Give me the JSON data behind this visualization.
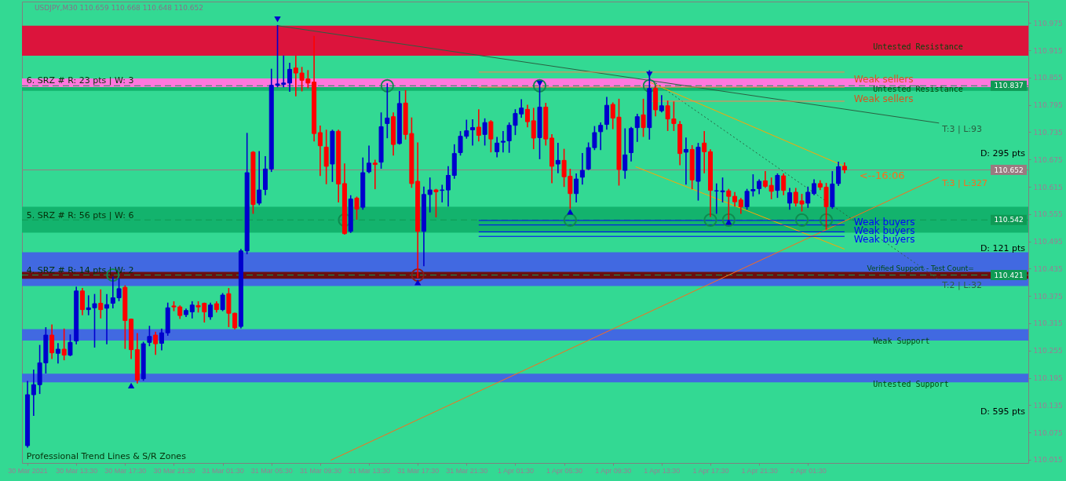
{
  "chart_data": {
    "type": "candlestick",
    "title": "USDJPY,M30 110.659 110.668 110.648 110.652",
    "x": [
      "2021-03-30T09:30",
      "2021-03-30T10:00",
      "2021-03-30T10:30",
      "2021-03-30T11:00",
      "2021-03-30T11:30",
      "2021-03-30T12:00",
      "2021-03-30T12:30",
      "2021-03-30T13:00",
      "2021-03-30T13:30",
      "2021-03-30T14:00",
      "2021-03-30T14:30",
      "2021-03-30T15:00",
      "2021-03-30T15:30",
      "2021-03-30T16:00",
      "2021-03-30T16:30",
      "2021-03-30T17:00",
      "2021-03-30T17:30",
      "2021-03-30T18:00",
      "2021-03-30T18:30",
      "2021-03-30T19:00",
      "2021-03-30T19:30",
      "2021-03-30T20:00",
      "2021-03-30T20:30",
      "2021-03-30T21:00",
      "2021-03-30T21:30",
      "2021-03-30T22:00",
      "2021-03-30T22:30",
      "2021-03-30T23:00",
      "2021-03-30T23:30",
      "2021-03-31T00:00",
      "2021-03-31T00:30",
      "2021-03-31T01:00",
      "2021-03-31T01:30",
      "2021-03-31T02:00",
      "2021-03-31T02:30",
      "2021-03-31T03:00",
      "2021-03-31T03:30",
      "2021-03-31T04:00",
      "2021-03-31T04:30",
      "2021-03-31T05:00",
      "2021-03-31T05:30",
      "2021-03-31T06:00",
      "2021-03-31T06:30",
      "2021-03-31T07:00",
      "2021-03-31T07:30",
      "2021-03-31T08:00",
      "2021-03-31T08:30",
      "2021-03-31T09:00",
      "2021-03-31T09:30",
      "2021-03-31T10:00",
      "2021-03-31T10:30",
      "2021-03-31T11:00",
      "2021-03-31T11:30",
      "2021-03-31T12:00",
      "2021-03-31T12:30",
      "2021-03-31T13:00",
      "2021-03-31T13:30",
      "2021-03-31T14:00",
      "2021-03-31T14:30",
      "2021-03-31T15:00",
      "2021-03-31T15:30",
      "2021-03-31T16:00",
      "2021-03-31T16:30",
      "2021-03-31T17:00",
      "2021-03-31T17:30",
      "2021-03-31T18:00",
      "2021-03-31T18:30",
      "2021-03-31T19:00",
      "2021-03-31T19:30",
      "2021-03-31T20:00",
      "2021-03-31T20:30",
      "2021-03-31T21:00",
      "2021-03-31T21:30",
      "2021-03-31T22:00",
      "2021-03-31T22:30",
      "2021-03-31T23:00",
      "2021-03-31T23:30",
      "2021-04-01T00:00",
      "2021-04-01T00:30",
      "2021-04-01T01:00",
      "2021-04-01T01:30",
      "2021-04-01T02:00",
      "2021-04-01T02:30",
      "2021-04-01T03:00",
      "2021-04-01T03:30",
      "2021-04-01T04:00",
      "2021-04-01T04:30",
      "2021-04-01T05:00",
      "2021-04-01T05:30",
      "2021-04-01T06:00",
      "2021-04-01T06:30",
      "2021-04-01T07:00",
      "2021-04-01T07:30",
      "2021-04-01T08:00",
      "2021-04-01T08:30",
      "2021-04-01T09:00",
      "2021-04-01T09:30",
      "2021-04-01T10:00",
      "2021-04-01T10:30",
      "2021-04-01T11:00",
      "2021-04-01T11:30",
      "2021-04-01T12:00",
      "2021-04-01T12:30",
      "2021-04-01T13:00",
      "2021-04-01T13:30",
      "2021-04-01T14:00",
      "2021-04-01T14:30",
      "2021-04-01T15:00",
      "2021-04-01T15:30",
      "2021-04-01T16:00",
      "2021-04-01T16:30",
      "2021-04-01T17:00",
      "2021-04-01T17:30",
      "2021-04-01T18:00",
      "2021-04-01T18:30",
      "2021-04-01T19:00",
      "2021-04-01T19:30",
      "2021-04-01T20:00",
      "2021-04-01T20:30",
      "2021-04-01T21:00",
      "2021-04-01T21:30",
      "2021-04-01T22:00",
      "2021-04-01T22:30",
      "2021-04-01T23:00",
      "2021-04-01T23:30",
      "2021-04-02T00:00",
      "2021-04-02T00:30",
      "2021-04-02T01:00",
      "2021-04-02T01:30",
      "2021-04-02T02:00",
      "2021-04-02T02:30",
      "2021-04-02T03:00",
      "2021-04-02T03:30",
      "2021-04-02T04:00",
      "2021-04-02T04:30"
    ],
    "ohlc": [
      [
        110.046,
        110.187,
        110.043,
        110.158
      ],
      [
        110.158,
        110.212,
        110.113,
        110.18
      ],
      [
        110.18,
        110.266,
        110.161,
        110.228
      ],
      [
        110.228,
        110.305,
        110.206,
        110.289
      ],
      [
        110.289,
        110.311,
        110.238,
        110.25
      ],
      [
        110.249,
        110.27,
        110.228,
        110.258
      ],
      [
        110.258,
        110.302,
        110.235,
        110.245
      ],
      [
        110.245,
        110.289,
        110.244,
        110.273
      ],
      [
        110.276,
        110.394,
        110.27,
        110.386
      ],
      [
        110.386,
        110.391,
        110.334,
        110.345
      ],
      [
        110.345,
        110.375,
        110.334,
        110.349
      ],
      [
        110.349,
        110.378,
        110.263,
        110.358
      ],
      [
        110.359,
        110.388,
        110.327,
        110.345
      ],
      [
        110.348,
        110.378,
        110.27,
        110.356
      ],
      [
        110.359,
        110.416,
        110.349,
        110.371
      ],
      [
        110.371,
        110.413,
        110.365,
        110.391
      ],
      [
        110.394,
        110.397,
        110.26,
        110.321
      ],
      [
        110.324,
        110.324,
        110.238,
        110.257
      ],
      [
        110.257,
        110.292,
        110.184,
        110.19
      ],
      [
        110.193,
        110.273,
        110.19,
        110.27
      ],
      [
        110.273,
        110.308,
        110.266,
        110.286
      ],
      [
        110.289,
        110.295,
        110.247,
        110.27
      ],
      [
        110.271,
        110.302,
        110.257,
        110.294
      ],
      [
        110.294,
        110.359,
        110.289,
        110.349
      ],
      [
        110.353,
        110.362,
        110.343,
        110.351
      ],
      [
        110.351,
        110.353,
        110.326,
        110.332
      ],
      [
        110.334,
        110.346,
        110.33,
        110.343
      ],
      [
        110.34,
        110.362,
        110.327,
        110.355
      ],
      [
        110.354,
        110.362,
        110.34,
        110.351
      ],
      [
        110.359,
        110.359,
        110.318,
        110.34
      ],
      [
        110.329,
        110.359,
        110.324,
        110.355
      ],
      [
        110.358,
        110.362,
        110.34,
        110.345
      ],
      [
        110.345,
        110.38,
        110.343,
        110.377
      ],
      [
        110.38,
        110.391,
        110.308,
        110.337
      ],
      [
        110.337,
        110.337,
        110.303,
        110.305
      ],
      [
        110.308,
        110.477,
        110.305,
        110.474
      ],
      [
        110.474,
        110.732,
        110.468,
        110.646
      ],
      [
        110.691,
        110.692,
        110.557,
        110.576
      ],
      [
        110.579,
        110.692,
        110.576,
        110.608
      ],
      [
        110.609,
        110.681,
        110.598,
        110.654
      ],
      [
        110.654,
        110.873,
        110.649,
        110.838
      ],
      [
        110.838,
        110.969,
        110.835,
        110.841
      ],
      [
        110.84,
        110.902,
        110.835,
        110.843
      ],
      [
        110.843,
        110.886,
        110.825,
        110.873
      ],
      [
        110.876,
        110.902,
        110.815,
        110.865
      ],
      [
        110.865,
        110.877,
        110.826,
        110.849
      ],
      [
        110.852,
        110.87,
        110.833,
        110.843
      ],
      [
        110.845,
        110.945,
        110.716,
        110.732
      ],
      [
        110.734,
        110.748,
        110.64,
        110.705
      ],
      [
        110.702,
        110.739,
        110.622,
        110.66
      ],
      [
        110.665,
        110.739,
        110.627,
        110.737
      ],
      [
        110.737,
        110.739,
        110.582,
        110.621
      ],
      [
        110.622,
        110.665,
        110.511,
        110.512
      ],
      [
        110.517,
        110.595,
        110.515,
        110.588
      ],
      [
        110.59,
        110.592,
        110.544,
        110.566
      ],
      [
        110.57,
        110.678,
        110.566,
        110.646
      ],
      [
        110.648,
        110.704,
        110.646,
        110.667
      ],
      [
        110.667,
        110.673,
        110.611,
        110.664
      ],
      [
        110.669,
        110.777,
        110.656,
        110.747
      ],
      [
        110.754,
        110.841,
        110.723,
        110.766
      ],
      [
        110.769,
        110.777,
        110.685,
        110.708
      ],
      [
        110.71,
        110.824,
        110.709,
        110.798
      ],
      [
        110.799,
        110.826,
        110.72,
        110.73
      ],
      [
        110.732,
        110.766,
        110.614,
        110.622
      ],
      [
        110.627,
        110.711,
        110.416,
        110.517
      ],
      [
        110.517,
        110.614,
        110.442,
        110.598
      ],
      [
        110.598,
        110.634,
        110.56,
        110.608
      ],
      [
        110.608,
        110.609,
        110.549,
        110.604
      ],
      [
        110.607,
        110.618,
        110.582,
        110.608
      ],
      [
        110.608,
        110.659,
        110.573,
        110.64
      ],
      [
        110.64,
        110.707,
        110.634,
        110.688
      ],
      [
        110.69,
        110.736,
        110.685,
        110.726
      ],
      [
        110.726,
        110.761,
        110.722,
        110.738
      ],
      [
        110.74,
        110.762,
        110.707,
        110.745
      ],
      [
        110.746,
        110.784,
        110.716,
        110.728
      ],
      [
        110.73,
        110.764,
        110.707,
        110.756
      ],
      [
        110.758,
        110.76,
        110.692,
        110.72
      ],
      [
        110.692,
        110.723,
        110.681,
        110.711
      ],
      [
        110.713,
        110.736,
        110.692,
        110.715
      ],
      [
        110.716,
        110.755,
        110.691,
        110.75
      ],
      [
        110.75,
        110.784,
        110.73,
        110.776
      ],
      [
        110.775,
        110.806,
        110.768,
        110.788
      ],
      [
        110.785,
        110.794,
        110.747,
        110.758
      ],
      [
        110.76,
        110.787,
        110.699,
        110.722
      ],
      [
        110.723,
        110.844,
        110.677,
        110.79
      ],
      [
        110.79,
        110.798,
        110.707,
        110.72
      ],
      [
        110.722,
        110.729,
        110.624,
        110.66
      ],
      [
        110.665,
        110.71,
        110.646,
        110.673
      ],
      [
        110.673,
        110.697,
        110.616,
        110.637
      ],
      [
        110.638,
        110.653,
        110.568,
        110.6
      ],
      [
        110.6,
        110.643,
        110.582,
        110.632
      ],
      [
        110.636,
        110.688,
        110.621,
        110.651
      ],
      [
        110.654,
        110.711,
        110.653,
        110.701
      ],
      [
        110.701,
        110.747,
        110.697,
        110.734
      ],
      [
        110.736,
        110.755,
        110.697,
        110.75
      ],
      [
        110.752,
        110.811,
        110.742,
        110.794
      ],
      [
        110.796,
        110.799,
        110.743,
        110.766
      ],
      [
        110.768,
        110.807,
        110.619,
        110.653
      ],
      [
        110.651,
        110.742,
        110.634,
        110.685
      ],
      [
        110.69,
        110.745,
        110.672,
        110.743
      ],
      [
        110.745,
        110.774,
        110.715,
        110.769
      ],
      [
        110.773,
        110.807,
        110.726,
        110.745
      ],
      [
        110.745,
        110.87,
        110.72,
        110.831
      ],
      [
        110.831,
        110.835,
        110.771,
        110.784
      ],
      [
        110.782,
        110.815,
        110.78,
        110.793
      ],
      [
        110.793,
        110.803,
        110.739,
        110.764
      ],
      [
        110.764,
        110.801,
        110.739,
        110.754
      ],
      [
        110.752,
        110.758,
        110.664,
        110.688
      ],
      [
        110.691,
        110.722,
        110.621,
        110.697
      ],
      [
        110.697,
        110.705,
        110.611,
        110.63
      ],
      [
        110.627,
        110.71,
        110.586,
        110.702
      ],
      [
        110.711,
        110.736,
        110.646,
        110.692
      ],
      [
        110.692,
        110.696,
        110.55,
        110.607
      ],
      [
        110.606,
        110.621,
        110.557,
        110.606
      ],
      [
        110.604,
        110.634,
        110.582,
        110.606
      ],
      [
        110.606,
        110.609,
        110.544,
        110.594
      ],
      [
        110.594,
        110.602,
        110.573,
        110.582
      ],
      [
        110.586,
        110.589,
        110.557,
        110.571
      ],
      [
        110.571,
        110.609,
        110.566,
        110.605
      ],
      [
        110.606,
        110.641,
        110.595,
        110.609
      ],
      [
        110.611,
        110.63,
        110.6,
        110.627
      ],
      [
        110.628,
        110.648,
        110.614,
        110.616
      ],
      [
        110.618,
        110.634,
        110.589,
        110.605
      ],
      [
        110.607,
        110.643,
        110.592,
        110.64
      ],
      [
        110.639,
        110.643,
        110.598,
        110.607
      ],
      [
        110.579,
        110.611,
        110.566,
        110.602
      ],
      [
        110.603,
        110.611,
        110.573,
        110.579
      ],
      [
        110.584,
        110.598,
        110.562,
        110.577
      ],
      [
        110.579,
        110.614,
        110.57,
        110.603
      ],
      [
        110.6,
        110.63,
        110.598,
        110.622
      ],
      [
        110.622,
        110.628,
        110.609,
        110.614
      ],
      [
        110.614,
        110.622,
        110.522,
        110.571
      ],
      [
        110.571,
        110.648,
        110.568,
        110.621
      ],
      [
        110.622,
        110.669,
        110.618,
        110.659
      ],
      [
        110.66,
        110.667,
        110.646,
        110.652
      ]
    ],
    "colors": [
      "#0000cd",
      "#0000cd",
      "#0000cd",
      "#0000cd",
      "#ff0000",
      "#0000cd",
      "#ff0000",
      "#0000cd",
      "#0000cd",
      "#ff0000",
      "#0000cd",
      "#0000cd",
      "#ff0000",
      "#0000cd",
      "#0000cd",
      "#0000cd",
      "#ff0000",
      "#ff0000",
      "#ff0000",
      "#0000cd",
      "#0000cd",
      "#ff0000",
      "#0000cd",
      "#0000cd",
      "#ff0000",
      "#ff0000",
      "#0000cd",
      "#0000cd",
      "#ff0000",
      "#ff0000",
      "#0000cd",
      "#ff0000",
      "#0000cd",
      "#ff0000",
      "#ff0000",
      "#0000cd",
      "#0000cd",
      "#ff0000",
      "#0000cd",
      "#0000cd",
      "#0000cd",
      "#0000cd",
      "#0000cd",
      "#0000cd",
      "#ff0000",
      "#ff0000",
      "#ff0000",
      "#ff0000",
      "#ff0000",
      "#ff0000",
      "#0000cd",
      "#ff0000",
      "#ff0000",
      "#0000cd",
      "#ff0000",
      "#0000cd",
      "#0000cd",
      "#ff0000",
      "#0000cd",
      "#0000cd",
      "#ff0000",
      "#0000cd",
      "#ff0000",
      "#ff0000",
      "#ff0000",
      "#0000cd",
      "#0000cd",
      "#ff0000",
      "#0000cd",
      "#0000cd",
      "#0000cd",
      "#0000cd",
      "#0000cd",
      "#0000cd",
      "#ff0000",
      "#0000cd",
      "#ff0000",
      "#0000cd",
      "#0000cd",
      "#0000cd",
      "#0000cd",
      "#0000cd",
      "#ff0000",
      "#ff0000",
      "#0000cd",
      "#ff0000",
      "#ff0000",
      "#0000cd",
      "#ff0000",
      "#ff0000",
      "#0000cd",
      "#0000cd",
      "#0000cd",
      "#0000cd",
      "#0000cd",
      "#0000cd",
      "#ff0000",
      "#ff0000",
      "#0000cd",
      "#0000cd",
      "#0000cd",
      "#ff0000",
      "#0000cd",
      "#ff0000",
      "#0000cd",
      "#ff0000",
      "#ff0000",
      "#ff0000",
      "#0000cd",
      "#ff0000",
      "#0000cd",
      "#ff0000",
      "#ff0000",
      "#0000cd",
      "#0000cd",
      "#ff0000",
      "#ff0000",
      "#ff0000",
      "#0000cd",
      "#0000cd",
      "#0000cd",
      "#ff0000",
      "#ff0000",
      "#0000cd",
      "#ff0000",
      "#0000cd",
      "#ff0000",
      "#ff0000",
      "#0000cd",
      "#0000cd",
      "#ff0000",
      "#ff0000",
      "#0000cd",
      "#0000cd",
      "#ff0000"
    ],
    "xlim": [
      "2021-03-30T09:22",
      "2021-04-02T19:15"
    ],
    "ylim": [
      110.008,
      111.022
    ],
    "xticks": [
      {
        "value": "2021-03-30T09:30",
        "label": "30 Mar 2021"
      },
      {
        "value": "2021-03-30T13:30",
        "label": "30 Mar 13:30"
      },
      {
        "value": "2021-03-30T17:30",
        "label": "30 Mar 17:30"
      },
      {
        "value": "2021-03-30T21:30",
        "label": "30 Mar 21:30"
      },
      {
        "value": "2021-03-31T01:30",
        "label": "31 Mar 01:30"
      },
      {
        "value": "2021-03-31T05:30",
        "label": "31 Mar 05:30"
      },
      {
        "value": "2021-03-31T09:30",
        "label": "31 Mar 09:30"
      },
      {
        "value": "2021-03-31T13:30",
        "label": "31 Mar 13:30"
      },
      {
        "value": "2021-03-31T17:30",
        "label": "31 Mar 17:30"
      },
      {
        "value": "2021-03-31T21:30",
        "label": "31 Mar 21:30"
      },
      {
        "value": "2021-04-01T01:30",
        "label": "1 Apr 01:30"
      },
      {
        "value": "2021-04-01T05:30",
        "label": "1 Apr 05:30"
      },
      {
        "value": "2021-04-01T09:30",
        "label": "1 Apr 09:30"
      },
      {
        "value": "2021-04-01T13:30",
        "label": "1 Apr 13:30"
      },
      {
        "value": "2021-04-01T17:30",
        "label": "1 Apr 17:30"
      },
      {
        "value": "2021-04-01T21:30",
        "label": "1 Apr 21:30"
      },
      {
        "value": "2021-04-02T01:30",
        "label": "2 Apr 01:30"
      }
    ],
    "yticks": [
      110.015,
      110.075,
      110.135,
      110.195,
      110.255,
      110.315,
      110.375,
      110.435,
      110.495,
      110.555,
      110.615,
      110.675,
      110.735,
      110.795,
      110.855,
      110.915,
      110.975
    ],
    "grid": false,
    "series": [
      {
        "type": "line",
        "name": "T:3 | L:93",
        "color": "#2a6041",
        "x": [
          "2021-03-31T06:00",
          "2021-04-02T12:15"
        ],
        "values": [
          110.969,
          110.755
        ]
      },
      {
        "type": "line",
        "name": "T:3 | L:327",
        "color": "#ff6a1a",
        "x": [
          "2021-03-31T10:22",
          "2021-04-02T12:15"
        ],
        "values": [
          110.014,
          110.636
        ]
      },
      {
        "type": "line",
        "name": "T:2 | L:32",
        "color": "#2a6041",
        "line_style": "dotted",
        "x": [
          "2021-04-01T12:30",
          "2021-04-02T12:15"
        ],
        "values": [
          110.853,
          110.411
        ]
      },
      {
        "type": "line",
        "color": "#ffa500",
        "x": [
          "2021-04-01T12:30",
          "2021-04-02T04:30"
        ],
        "values": [
          110.845,
          110.66
        ]
      },
      {
        "type": "line",
        "color": "#ffa500",
        "x": [
          "2021-04-01T11:22",
          "2021-04-02T04:30"
        ],
        "values": [
          110.659,
          110.478
        ]
      },
      {
        "type": "line",
        "color": "#ff7f50",
        "x": [
          "2021-03-31T22:30",
          "2021-04-02T04:30"
        ],
        "values": [
          110.867,
          110.867
        ]
      },
      {
        "type": "line",
        "color": "#ff7f50",
        "x": [
          "2021-03-31T22:30",
          "2021-04-02T04:30"
        ],
        "values": [
          110.834,
          110.834
        ]
      },
      {
        "type": "line",
        "color": "#ff7f50",
        "x": [
          "2021-04-01T12:30",
          "2021-04-02T04:30"
        ],
        "values": [
          110.803,
          110.803
        ]
      },
      {
        "type": "line",
        "color": "#0000ff",
        "x": [
          "2021-03-31T22:30",
          "2021-04-02T04:30"
        ],
        "values": [
          110.541,
          110.541
        ]
      },
      {
        "type": "line",
        "color": "#0000ff",
        "x": [
          "2021-03-31T22:30",
          "2021-04-02T04:30"
        ],
        "values": [
          110.531,
          110.531
        ]
      },
      {
        "type": "line",
        "color": "#0000ff",
        "x": [
          "2021-03-31T22:30",
          "2021-04-02T04:30"
        ],
        "values": [
          110.516,
          110.516
        ]
      },
      {
        "type": "line",
        "color": "#0000ff",
        "x": [
          "2021-03-31T22:30",
          "2021-04-02T04:30"
        ],
        "values": [
          110.506,
          110.506
        ]
      },
      {
        "type": "scatter",
        "marker": "circle",
        "color": "#0f8a4f",
        "x": [
          "2021-03-30T16:30",
          "2021-03-31T15:00",
          "2021-04-01T03:30",
          "2021-04-01T12:30",
          "2021-03-31T11:30",
          "2021-04-01T06:00",
          "2021-04-01T17:30",
          "2021-04-01T19:00",
          "2021-04-02T01:00",
          "2021-04-02T03:00"
        ],
        "values": [
          110.421,
          110.837,
          110.837,
          110.837,
          110.542,
          110.542,
          110.542,
          110.542,
          110.542,
          110.542
        ]
      },
      {
        "type": "scatter",
        "marker": "circle",
        "color": "#8b1a1a",
        "x": [
          "2021-03-31T17:30"
        ],
        "values": [
          110.421
        ]
      },
      {
        "type": "scatter",
        "marker": "triangle",
        "color": "#0000cd",
        "x": [
          "2021-03-30T18:00",
          "2021-03-31T17:30",
          "2021-04-01T06:00",
          "2021-04-01T19:00"
        ],
        "values": [
          110.178,
          110.405,
          110.56,
          110.538
        ]
      },
      {
        "type": "scatter",
        "marker": "triangle-down",
        "color": "#0000cd",
        "x": [
          "2021-03-31T06:00",
          "2021-04-01T03:30",
          "2021-04-01T12:30"
        ],
        "values": [
          110.983,
          110.842,
          110.862
        ]
      }
    ],
    "bands": [
      {
        "axis": "y",
        "from": 110.903,
        "to": 110.969,
        "color": "#dc143c"
      },
      {
        "axis": "y",
        "from": 110.826,
        "to": 110.852,
        "color": "#13b36d"
      },
      {
        "axis": "y",
        "from": 110.834,
        "to": 110.853,
        "color": "#ff77dd"
      },
      {
        "axis": "y",
        "from": 110.514,
        "to": 110.571,
        "color": "#13b36d"
      },
      {
        "axis": "y",
        "from": 110.397,
        "to": 110.471,
        "color": "#4169e1"
      },
      {
        "axis": "y",
        "from": 110.413,
        "to": 110.428,
        "color": "#6b0f0f"
      },
      {
        "axis": "y",
        "from": 110.277,
        "to": 110.302,
        "color": "#4169e1"
      },
      {
        "axis": "y",
        "from": 110.185,
        "to": 110.204,
        "color": "#4169e1"
      }
    ],
    "ref_lines": [
      {
        "axis": "y",
        "value": 110.837,
        "label": "110.837",
        "color": "#0f9a55",
        "line_style": "dashed"
      },
      {
        "axis": "y",
        "value": 110.652,
        "label": "110.652",
        "color": "#9a7a80",
        "line_style": "solid"
      },
      {
        "axis": "y",
        "value": 110.542,
        "label": "110.542",
        "color": "#0f9a55",
        "line_style": "dashed"
      },
      {
        "axis": "y",
        "value": 110.421,
        "label": "110.421",
        "color": "#0f9a55",
        "line_style": "dashed"
      }
    ],
    "annotations": [
      "6. SRZ # R: 23 pts | W: 3",
      "5. SRZ # R: 56 pts | W: 6",
      "4. SRZ # R: 14 pts | W: 2",
      "Untested Resistance",
      "Untested Resistance",
      "Weak sellers",
      "Weak sellers",
      "Weak buyers",
      "Weak buyers",
      "Weak buyers",
      "Verified Support - Test Count=",
      "Weak Support",
      "Untested Support",
      "D: 295 pts",
      "D: 121 pts",
      "D: 595 pts",
      "<--16:06",
      "Professional Trend Lines & S/R Zones"
    ]
  }
}
